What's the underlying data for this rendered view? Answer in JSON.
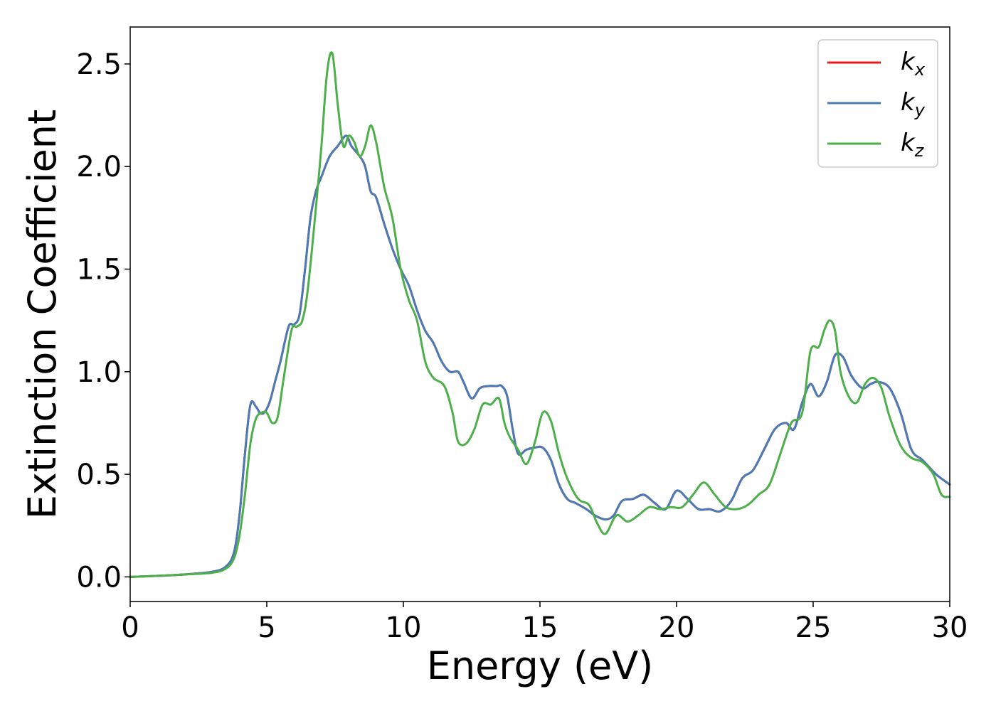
{
  "chart_data": {
    "type": "line",
    "title": "",
    "xlabel": "Energy (eV)",
    "ylabel": "Extinction Coefficient",
    "xlim": [
      0,
      30
    ],
    "ylim": [
      -0.12,
      2.68
    ],
    "xticks": [
      0,
      5,
      10,
      15,
      20,
      25,
      30
    ],
    "yticks": [
      0.0,
      0.5,
      1.0,
      1.5,
      2.0,
      2.5
    ],
    "xtick_labels": [
      "0",
      "5",
      "10",
      "15",
      "20",
      "25",
      "30"
    ],
    "ytick_labels": [
      "0.0",
      "0.5",
      "1.0",
      "1.5",
      "2.0",
      "2.5"
    ],
    "grid": false,
    "legend_position": "top-right",
    "series": [
      {
        "name": "k",
        "subscript": "x",
        "color": "#e41a1c",
        "x": [
          0,
          1,
          2,
          3,
          3.5,
          3.8,
          4.0,
          4.2,
          4.4,
          4.6,
          4.75,
          4.9,
          5.1,
          5.3,
          5.5,
          5.8,
          6.0,
          6.2,
          6.4,
          6.6,
          6.8,
          7.0,
          7.3,
          7.6,
          7.9,
          8.1,
          8.4,
          8.6,
          8.8,
          9.0,
          9.3,
          9.6,
          9.9,
          10.2,
          10.5,
          10.8,
          11.1,
          11.4,
          11.7,
          12.0,
          12.2,
          12.5,
          12.8,
          13.1,
          13.4,
          13.6,
          13.8,
          14.0,
          14.2,
          14.5,
          14.8,
          15.1,
          15.4,
          15.7,
          16.0,
          16.3,
          16.7,
          17.0,
          17.4,
          17.7,
          18.0,
          18.4,
          18.8,
          19.2,
          19.6,
          20.0,
          20.4,
          20.8,
          21.2,
          21.6,
          22.0,
          22.4,
          22.8,
          23.2,
          23.6,
          24.0,
          24.3,
          24.6,
          24.9,
          25.2,
          25.5,
          25.8,
          26.1,
          26.4,
          26.8,
          27.1,
          27.4,
          27.8,
          28.2,
          28.6,
          29.0,
          29.5,
          30.0
        ],
        "y": [
          0.0,
          0.005,
          0.012,
          0.025,
          0.05,
          0.12,
          0.3,
          0.6,
          0.84,
          0.83,
          0.8,
          0.8,
          0.85,
          0.95,
          1.05,
          1.22,
          1.23,
          1.28,
          1.5,
          1.75,
          1.88,
          1.95,
          2.05,
          2.1,
          2.15,
          2.1,
          2.05,
          2.0,
          1.88,
          1.85,
          1.72,
          1.6,
          1.5,
          1.42,
          1.3,
          1.2,
          1.14,
          1.05,
          1.0,
          1.0,
          0.95,
          0.87,
          0.92,
          0.93,
          0.93,
          0.93,
          0.88,
          0.72,
          0.6,
          0.62,
          0.63,
          0.63,
          0.57,
          0.45,
          0.38,
          0.36,
          0.33,
          0.3,
          0.28,
          0.3,
          0.37,
          0.38,
          0.4,
          0.36,
          0.33,
          0.42,
          0.38,
          0.33,
          0.33,
          0.32,
          0.37,
          0.48,
          0.52,
          0.62,
          0.72,
          0.75,
          0.72,
          0.85,
          0.94,
          0.88,
          0.95,
          1.08,
          1.07,
          0.98,
          0.92,
          0.94,
          0.95,
          0.92,
          0.8,
          0.62,
          0.57,
          0.5,
          0.45
        ]
      },
      {
        "name": "k",
        "subscript": "y",
        "color": "#4a7bb7",
        "x": [
          0,
          1,
          2,
          3,
          3.5,
          3.8,
          4.0,
          4.2,
          4.4,
          4.6,
          4.75,
          4.9,
          5.1,
          5.3,
          5.5,
          5.8,
          6.0,
          6.2,
          6.4,
          6.6,
          6.8,
          7.0,
          7.3,
          7.6,
          7.9,
          8.1,
          8.4,
          8.6,
          8.8,
          9.0,
          9.3,
          9.6,
          9.9,
          10.2,
          10.5,
          10.8,
          11.1,
          11.4,
          11.7,
          12.0,
          12.2,
          12.5,
          12.8,
          13.1,
          13.4,
          13.6,
          13.8,
          14.0,
          14.2,
          14.5,
          14.8,
          15.1,
          15.4,
          15.7,
          16.0,
          16.3,
          16.7,
          17.0,
          17.4,
          17.7,
          18.0,
          18.4,
          18.8,
          19.2,
          19.6,
          20.0,
          20.4,
          20.8,
          21.2,
          21.6,
          22.0,
          22.4,
          22.8,
          23.2,
          23.6,
          24.0,
          24.3,
          24.6,
          24.9,
          25.2,
          25.5,
          25.8,
          26.1,
          26.4,
          26.8,
          27.1,
          27.4,
          27.8,
          28.2,
          28.6,
          29.0,
          29.5,
          30.0
        ],
        "y": [
          0.0,
          0.005,
          0.012,
          0.025,
          0.05,
          0.12,
          0.3,
          0.6,
          0.84,
          0.83,
          0.8,
          0.8,
          0.85,
          0.95,
          1.05,
          1.22,
          1.23,
          1.28,
          1.5,
          1.75,
          1.88,
          1.95,
          2.05,
          2.1,
          2.15,
          2.1,
          2.05,
          2.0,
          1.88,
          1.85,
          1.72,
          1.6,
          1.5,
          1.42,
          1.3,
          1.2,
          1.14,
          1.05,
          1.0,
          1.0,
          0.95,
          0.87,
          0.92,
          0.93,
          0.93,
          0.93,
          0.88,
          0.72,
          0.6,
          0.62,
          0.63,
          0.63,
          0.57,
          0.45,
          0.38,
          0.36,
          0.33,
          0.3,
          0.28,
          0.3,
          0.37,
          0.38,
          0.4,
          0.36,
          0.33,
          0.42,
          0.38,
          0.33,
          0.33,
          0.32,
          0.37,
          0.48,
          0.52,
          0.62,
          0.72,
          0.75,
          0.72,
          0.85,
          0.94,
          0.88,
          0.95,
          1.08,
          1.07,
          0.98,
          0.92,
          0.94,
          0.95,
          0.92,
          0.8,
          0.62,
          0.57,
          0.5,
          0.45
        ]
      },
      {
        "name": "k",
        "subscript": "z",
        "color": "#4daf4a",
        "x": [
          0,
          1,
          2,
          3,
          3.5,
          3.8,
          4.0,
          4.2,
          4.4,
          4.6,
          4.8,
          5.0,
          5.2,
          5.4,
          5.6,
          5.9,
          6.1,
          6.3,
          6.5,
          6.8,
          7.0,
          7.2,
          7.4,
          7.6,
          7.8,
          8.0,
          8.2,
          8.4,
          8.6,
          8.8,
          9.0,
          9.3,
          9.6,
          9.9,
          10.2,
          10.5,
          10.8,
          11.1,
          11.5,
          11.8,
          12.0,
          12.3,
          12.6,
          12.9,
          13.2,
          13.5,
          13.7,
          13.9,
          14.2,
          14.5,
          14.8,
          15.1,
          15.4,
          15.7,
          16.0,
          16.4,
          16.8,
          17.1,
          17.4,
          17.8,
          18.2,
          18.6,
          19.0,
          19.4,
          19.8,
          20.2,
          20.6,
          21.0,
          21.4,
          21.8,
          22.2,
          22.6,
          23.0,
          23.4,
          23.8,
          24.2,
          24.6,
          24.9,
          25.2,
          25.4,
          25.6,
          25.8,
          26.0,
          26.3,
          26.6,
          26.9,
          27.2,
          27.5,
          27.8,
          28.2,
          28.6,
          29.0,
          29.4,
          29.7,
          30.0
        ],
        "y": [
          0.0,
          0.005,
          0.012,
          0.02,
          0.04,
          0.09,
          0.2,
          0.4,
          0.65,
          0.77,
          0.8,
          0.8,
          0.75,
          0.78,
          0.95,
          1.2,
          1.22,
          1.25,
          1.4,
          1.8,
          2.1,
          2.45,
          2.55,
          2.3,
          2.1,
          2.15,
          2.12,
          2.05,
          2.1,
          2.2,
          2.12,
          1.9,
          1.75,
          1.5,
          1.35,
          1.25,
          1.05,
          0.97,
          0.93,
          0.8,
          0.66,
          0.65,
          0.72,
          0.84,
          0.84,
          0.87,
          0.75,
          0.68,
          0.62,
          0.55,
          0.65,
          0.8,
          0.76,
          0.6,
          0.48,
          0.38,
          0.35,
          0.26,
          0.21,
          0.3,
          0.27,
          0.3,
          0.34,
          0.33,
          0.34,
          0.34,
          0.4,
          0.46,
          0.4,
          0.34,
          0.33,
          0.35,
          0.4,
          0.45,
          0.6,
          0.75,
          0.8,
          1.1,
          1.12,
          1.2,
          1.25,
          1.2,
          1.0,
          0.88,
          0.85,
          0.94,
          0.97,
          0.92,
          0.78,
          0.64,
          0.58,
          0.56,
          0.5,
          0.4,
          0.39
        ]
      }
    ]
  }
}
